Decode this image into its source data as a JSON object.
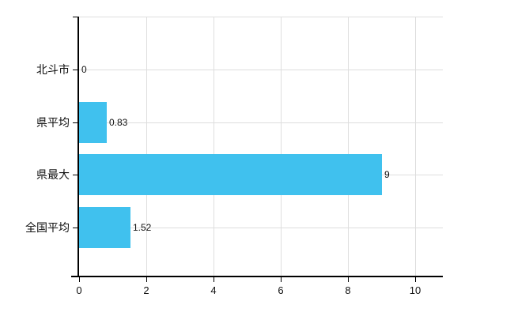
{
  "chart_data": {
    "type": "bar",
    "orientation": "horizontal",
    "title": "",
    "categories": [
      "北斗市",
      "県平均",
      "県最大",
      "全国平均"
    ],
    "values": [
      0,
      0.83,
      9,
      1.52
    ],
    "value_labels": [
      "0",
      "0.83",
      "9",
      "1.52"
    ],
    "x_ticks": [
      "0",
      "2",
      "4",
      "6",
      "8",
      "10"
    ],
    "x_tick_values": [
      0,
      2,
      4,
      6,
      8,
      10
    ],
    "xlim": [
      0,
      10.8
    ],
    "xlabel": "",
    "ylabel": "",
    "grid": true,
    "legend": false,
    "colors": {
      "bar": "#40C1EE",
      "grid": "#dedede",
      "axis": "#000000",
      "text": "#111111",
      "background": "#ffffff"
    }
  }
}
